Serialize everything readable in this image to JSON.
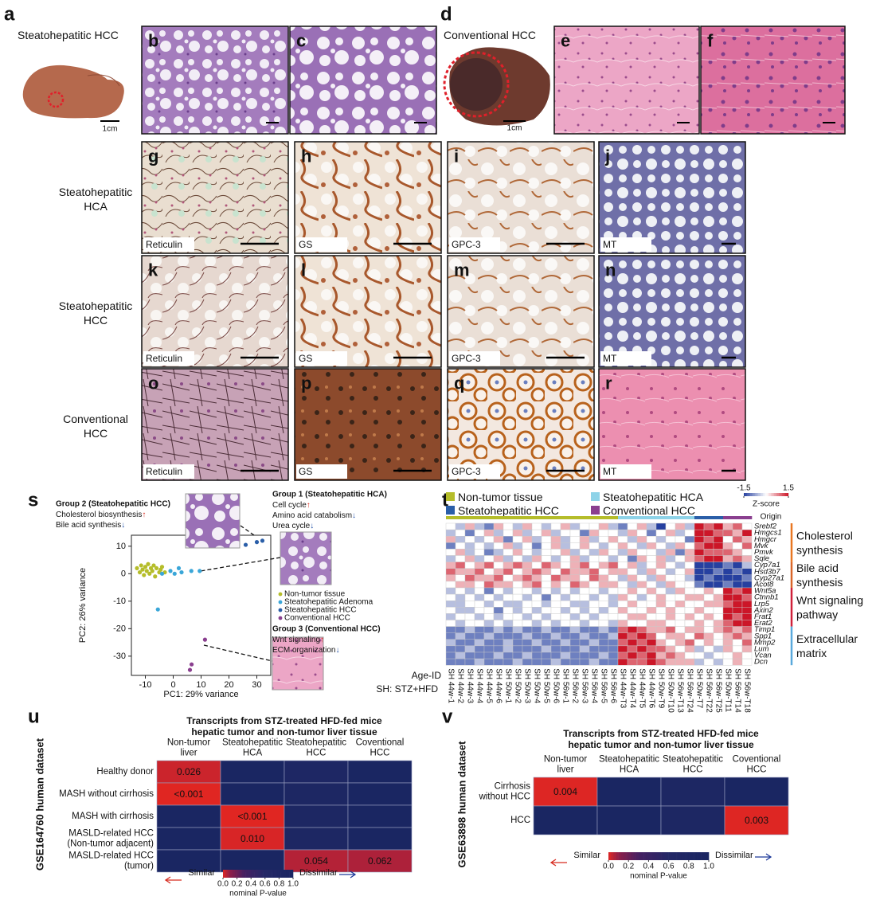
{
  "top": [
    {
      "letter": "a",
      "title": "Steatohepatitic HCC",
      "scale_bar": "1cm"
    },
    {
      "letter": "b"
    },
    {
      "letter": "c"
    },
    {
      "letter": "d",
      "title": "Conventional HCC",
      "scale_bar": "1cm"
    },
    {
      "letter": "e"
    },
    {
      "letter": "f"
    }
  ],
  "grid": [
    {
      "label": [
        "Steatohepatitic",
        "HCA"
      ],
      "panels": [
        {
          "letter": "g",
          "stain": "Reticulin"
        },
        {
          "letter": "h",
          "stain": "GS"
        },
        {
          "letter": "i",
          "stain": "GPC-3"
        },
        {
          "letter": "j",
          "stain": "MT"
        }
      ]
    },
    {
      "label": [
        "Steatohepatitic",
        "HCC"
      ],
      "panels": [
        {
          "letter": "k",
          "stain": "Reticulin"
        },
        {
          "letter": "l",
          "stain": "GS"
        },
        {
          "letter": "m",
          "stain": "GPC-3"
        },
        {
          "letter": "n",
          "stain": "MT"
        }
      ]
    },
    {
      "label": [
        "Conventional",
        "HCC"
      ],
      "panels": [
        {
          "letter": "o",
          "stain": "Reticulin"
        },
        {
          "letter": "p",
          "stain": "GS"
        },
        {
          "letter": "q",
          "stain": "GPC-3"
        },
        {
          "letter": "r",
          "stain": "MT"
        }
      ]
    }
  ],
  "s": {
    "letter": "s",
    "type": "scatter",
    "x_label": "PC1: 29% variance",
    "y_label": "PC2: 26% variance",
    "xlim": [
      -15,
      35
    ],
    "ylim": [
      -37,
      14
    ],
    "xticks": [
      -10,
      0,
      10,
      20,
      30
    ],
    "yticks": [
      10,
      0,
      -10,
      -20,
      -30
    ],
    "series": [
      {
        "name": "Non-tumor tissue",
        "color": "#b5bd2a",
        "x": [
          -13,
          -12,
          -11.5,
          -11,
          -10.5,
          -10,
          -9.5,
          -9,
          -8.5,
          -8,
          -7.5,
          -7,
          -6.5,
          -6,
          -5,
          -4.5,
          -4,
          -3
        ],
        "y": [
          2,
          0.5,
          3,
          1.5,
          -0.5,
          2.5,
          1,
          3.5,
          0,
          2,
          1,
          3,
          -1,
          2,
          0.5,
          1.5,
          2.5,
          0.5
        ]
      },
      {
        "name": "Steatohepatitic Adenoma",
        "color": "#3aa6d8",
        "x": [
          -4,
          -1,
          0.5,
          2,
          3,
          6.5,
          9.5,
          -5.5
        ],
        "y": [
          0,
          1,
          0,
          2,
          0.5,
          1,
          1,
          -13
        ]
      },
      {
        "name": "Steatohepatitic HCC",
        "color": "#2a5ea8",
        "x": [
          26,
          30,
          32
        ],
        "y": [
          10.5,
          11.5,
          12
        ]
      },
      {
        "name": "Conventional HCC",
        "color": "#8a3f8f",
        "x": [
          6.6,
          6,
          11.4
        ],
        "y": [
          -33,
          -35,
          -24
        ]
      }
    ],
    "groups": [
      {
        "title": "Group 2 (Steatohepatitic HCC)",
        "items": [
          {
            "text": "Cholesterol biosynthesis",
            "arrow": "↑",
            "arrow_color": "#d62a1e"
          },
          {
            "text": "Bile acid synthesis",
            "arrow": "↓",
            "arrow_color": "#1f4fa8"
          }
        ]
      },
      {
        "title": "Group 1 (Steatohepatitic HCA)",
        "items": [
          {
            "text": "Cell cycle",
            "arrow": "↑",
            "arrow_color": "#d62a1e"
          },
          {
            "text": "Amino acid catabolism",
            "arrow": "↓",
            "arrow_color": "#1f4fa8"
          },
          {
            "text": "Urea cycle",
            "arrow": "↓",
            "arrow_color": "#1f4fa8"
          }
        ]
      },
      {
        "title": "Group 3 (Conventional HCC)",
        "items": [
          {
            "text": "Wnt signaling",
            "arrow": "↑",
            "arrow_color": "#d62a1e"
          },
          {
            "text": "ECM organization",
            "arrow": "↓",
            "arrow_color": "#1f4fa8"
          }
        ]
      }
    ]
  },
  "t": {
    "letter": "t",
    "type": "heatmap",
    "groups": [
      {
        "name": "Non-tumor tissue",
        "color": "#b5bd2a"
      },
      {
        "name": "Steatohepatitic HCA",
        "color": "#8ed3e8"
      },
      {
        "name": "Steatohepatitic HCC",
        "color": "#2a5ea8"
      },
      {
        "name": "Conventional HCC",
        "color": "#8a3f8f"
      }
    ],
    "zlim": [
      -1.5,
      1.5
    ],
    "colorbar_ticks": [
      -1.5,
      1.5
    ],
    "colorbar_label": "Z-score",
    "origin_label": "Origin",
    "age_label": "Age-ID",
    "note": "SH: STZ+HFD",
    "origin": [
      0,
      0,
      0,
      0,
      0,
      0,
      0,
      0,
      0,
      0,
      0,
      0,
      0,
      0,
      0,
      0,
      0,
      0,
      1,
      1,
      1,
      1,
      1,
      1,
      1,
      1,
      2,
      2,
      2,
      3,
      3,
      3
    ],
    "samples": [
      "SH 44w-1",
      "SH 44w-2",
      "SH 44w-3",
      "SH 44w-4",
      "SH 44w-5",
      "SH 44w-6",
      "SH 50w-1",
      "SH 50w-2",
      "SH 50w-3",
      "SH 50w-4",
      "SH 50w-5",
      "SH 50w-6",
      "SH 56w-1",
      "SH 56w-2",
      "SH 56w-3",
      "SH 56w-4",
      "SH 56w-5",
      "SH 56w-6",
      "SH 44w-T3",
      "SH 44w-T4",
      "SH 44w-T5",
      "SH 44w-T6",
      "SH 50w-T9",
      "SH 50w-T10",
      "SH 56w-T13",
      "SH 56w-T24",
      "SH 50w-T7",
      "SH 56w-T22",
      "SH 56w-T25",
      "SH 50w-T11",
      "SH 56w-T14",
      "SH 56w-T18"
    ],
    "genes": [
      "Srebf2",
      "Hmgcs1",
      "Hmgcr",
      "Mvk",
      "Pmvk",
      "Sqle",
      "Cyp7a1",
      "Hsd3b7",
      "Cyp27a1",
      "Acot8",
      "Wnt5a",
      "Ctnnb1",
      "Lrp5",
      "Axin2",
      "Frat1",
      "Erat2",
      "Timp1",
      "Spp1",
      "Mmp2",
      "Lum",
      "Vcan",
      "Dcn"
    ],
    "pathways": [
      {
        "label": [
          "Cholesterol",
          "synthesis"
        ],
        "rows": [
          0,
          5
        ],
        "color": "#e87722"
      },
      {
        "label": [
          "Bile acid",
          "synthesis"
        ],
        "rows": [
          6,
          9
        ],
        "color": "#d9662a"
      },
      {
        "label": [
          "Wnt signaling",
          "pathway"
        ],
        "rows": [
          10,
          15
        ],
        "color": "#d0213a"
      },
      {
        "label": [
          "Extracellular",
          "matrix"
        ],
        "rows": [
          16,
          21
        ],
        "color": "#5aa9dc"
      }
    ],
    "values": [
      [
        0,
        -0.5,
        0.5,
        -0.5,
        -1,
        0.5,
        0,
        -0.5,
        0.5,
        0,
        -0.5,
        0,
        0.5,
        -0.5,
        0,
        0,
        0.5,
        -0.5,
        -1,
        0,
        0.5,
        -0.5,
        -1.5,
        0,
        0.5,
        -0.5,
        1.5,
        1,
        1.5,
        0.5,
        1,
        0
      ],
      [
        -0.5,
        0,
        -1,
        0,
        0.5,
        -0.5,
        0,
        0.5,
        -0.5,
        0,
        0.5,
        -0.5,
        0,
        0,
        -1,
        0.5,
        0,
        0,
        -0.5,
        0.5,
        0,
        -1,
        0,
        0.5,
        -0.5,
        0,
        1.5,
        1.5,
        1,
        1,
        0.5,
        1.5
      ],
      [
        0.5,
        -0.5,
        0,
        -0.5,
        0,
        0.5,
        -1,
        0,
        0.5,
        -0.5,
        0,
        0.5,
        -0.5,
        0,
        0.5,
        -0.5,
        0,
        0.5,
        0,
        -0.5,
        0.5,
        0,
        -0.5,
        0,
        0,
        -1,
        1.5,
        1,
        1.5,
        0,
        1,
        0.5
      ],
      [
        -1,
        0,
        -0.5,
        0,
        -0.5,
        0,
        0.5,
        -0.5,
        0,
        -1,
        0,
        0.5,
        -0.5,
        0,
        0.5,
        0,
        -0.5,
        0,
        0.5,
        0,
        -0.5,
        0.5,
        0,
        -0.5,
        0.5,
        0,
        1,
        1.5,
        1.5,
        0.5,
        0,
        1
      ],
      [
        0,
        0.5,
        -0.5,
        0,
        -1,
        -0.5,
        0,
        0.5,
        0,
        -0.5,
        0,
        0,
        0.5,
        -0.5,
        0,
        -0.5,
        0.5,
        0,
        -0.5,
        0.5,
        0,
        0,
        -0.5,
        0.5,
        -1,
        0.5,
        1.5,
        1,
        1,
        1,
        0.5,
        0
      ],
      [
        -0.5,
        0,
        0.5,
        -0.5,
        0,
        0.5,
        -0.5,
        0,
        -0.5,
        0.5,
        0,
        -0.5,
        0,
        0.5,
        -0.5,
        0,
        0,
        -0.5,
        0,
        -1,
        0.5,
        0,
        0.5,
        -0.5,
        0,
        0.5,
        1,
        1.5,
        1.5,
        0.5,
        1,
        0.5
      ],
      [
        0.5,
        1,
        0,
        0.5,
        1,
        0,
        0.5,
        1,
        0.5,
        0,
        1,
        0.5,
        0,
        0.5,
        1,
        0,
        0.5,
        1,
        0,
        0.5,
        -0.5,
        0,
        0.5,
        0,
        -0.5,
        0,
        -1.5,
        -1.5,
        -1.5,
        -1,
        -1.5,
        -0.5
      ],
      [
        1,
        0.5,
        0.5,
        1,
        0,
        0.5,
        1,
        0,
        0.5,
        1,
        0.5,
        0,
        1,
        0.5,
        0.5,
        1,
        0,
        0.5,
        0.5,
        0,
        -0.5,
        0.5,
        0,
        -0.5,
        0,
        0.5,
        -1.5,
        -1.5,
        -1,
        -1.5,
        -1,
        -1.5
      ],
      [
        0.5,
        0,
        1,
        0.5,
        0.5,
        1,
        0,
        0.5,
        1,
        0.5,
        0,
        1,
        0.5,
        0.5,
        0,
        1,
        0.5,
        0,
        -0.5,
        0.5,
        0,
        -0.5,
        0.5,
        0,
        0,
        -0.5,
        -1.5,
        -1,
        -1.5,
        -1.5,
        -1.5,
        -1
      ],
      [
        0,
        0.5,
        0.5,
        0,
        1,
        0.5,
        0.5,
        0,
        0.5,
        1,
        0,
        0.5,
        0,
        1,
        0.5,
        0,
        0.5,
        0.5,
        0,
        -0.5,
        0.5,
        0,
        -0.5,
        0.5,
        0,
        0,
        -1,
        -1.5,
        -1.5,
        -1,
        -1.5,
        -1.5
      ],
      [
        -0.5,
        0,
        -0.5,
        0,
        -1,
        0,
        -0.5,
        0,
        0,
        -0.5,
        0,
        -0.5,
        0,
        -0.5,
        0,
        0,
        -0.5,
        0,
        0,
        0.5,
        0,
        0.5,
        0,
        -0.5,
        0.5,
        0,
        0,
        0.5,
        0,
        1.5,
        1,
        1.5
      ],
      [
        0,
        -0.5,
        0,
        -0.5,
        0,
        -0.5,
        0,
        0,
        -0.5,
        0,
        -1,
        0,
        -0.5,
        0,
        0,
        -0.5,
        0,
        -0.5,
        0.5,
        0,
        -0.5,
        0,
        0.5,
        0,
        0,
        0.5,
        0.5,
        0,
        0.5,
        1.5,
        1.5,
        1
      ],
      [
        -0.5,
        -0.5,
        0,
        0,
        -0.5,
        0,
        -0.5,
        -0.5,
        0,
        0,
        -0.5,
        0,
        0,
        -0.5,
        -0.5,
        0,
        0,
        -0.5,
        0,
        0.5,
        0,
        0,
        0.5,
        0,
        0.5,
        0,
        0,
        0.5,
        0.5,
        1,
        1.5,
        1.5
      ],
      [
        0,
        -0.5,
        -0.5,
        0,
        0,
        -1,
        0,
        -0.5,
        0,
        -0.5,
        0,
        0,
        -0.5,
        0,
        -0.5,
        0,
        -0.5,
        0,
        0.5,
        0,
        0,
        0.5,
        0,
        0.5,
        0,
        0,
        0.5,
        0,
        0,
        1.5,
        1.5,
        1.5
      ],
      [
        -0.5,
        0,
        0,
        -0.5,
        0,
        -0.5,
        0,
        0,
        -0.5,
        0,
        -0.5,
        0,
        0,
        -0.5,
        0,
        -0.5,
        0,
        0,
        0,
        0.5,
        0.5,
        0,
        0,
        0.5,
        0,
        0.5,
        0,
        0.5,
        0,
        1.5,
        1,
        1.5
      ],
      [
        0,
        -0.5,
        0,
        0,
        -0.5,
        0,
        -0.5,
        0,
        0,
        -0.5,
        0,
        -0.5,
        0,
        0,
        -0.5,
        0,
        0,
        -0.5,
        0.5,
        0,
        0,
        0.5,
        0.5,
        0,
        0,
        0,
        0.5,
        0,
        0.5,
        1,
        1.5,
        1.5
      ],
      [
        -1,
        -1,
        -0.5,
        -1,
        -1,
        -0.5,
        -1,
        -0.5,
        -1,
        -1,
        -0.5,
        -1,
        -1,
        -0.5,
        -1,
        -1,
        -0.5,
        -1,
        1,
        1.5,
        1,
        0.5,
        0.5,
        1,
        0,
        0.5,
        0.5,
        0,
        0.5,
        1,
        0.5,
        1
      ],
      [
        -1,
        -0.5,
        -1,
        -1,
        -0.5,
        -1,
        -1,
        -1,
        -0.5,
        -1,
        -1,
        -0.5,
        -1,
        -1,
        -0.5,
        -1,
        -1,
        -0.5,
        1.5,
        1,
        1.5,
        1,
        0,
        0.5,
        0.5,
        0,
        1,
        0.5,
        0,
        0.5,
        1,
        0.5
      ],
      [
        -0.5,
        -1,
        -1,
        -0.5,
        -1,
        -1,
        -0.5,
        -1,
        -1,
        -0.5,
        -1,
        -1,
        -0.5,
        -1,
        -1,
        -0.5,
        -1,
        -1,
        1,
        1.5,
        1,
        1.5,
        0.5,
        0,
        0.5,
        1,
        0,
        0.5,
        0,
        0.5,
        0,
        1
      ],
      [
        -1,
        -1,
        -0.5,
        -1,
        -1,
        -1,
        -0.5,
        -1,
        -1,
        -1,
        -0.5,
        -1,
        -1,
        -1,
        -0.5,
        -1,
        -1,
        -1,
        1.5,
        1,
        1.5,
        1,
        1,
        0.5,
        0,
        0.5,
        -0.5,
        0,
        -0.5,
        0.5,
        0,
        0.5
      ],
      [
        -1,
        -0.5,
        -1,
        -1,
        -1,
        -0.5,
        -1,
        -1,
        -0.5,
        -1,
        -1,
        -1,
        -0.5,
        -1,
        -1,
        -1,
        -0.5,
        -1,
        1,
        1.5,
        1,
        1.5,
        0.5,
        1,
        0.5,
        0,
        0,
        -0.5,
        0,
        0,
        0.5,
        0
      ],
      [
        -1,
        -1,
        -1,
        -0.5,
        -1,
        -1,
        -1,
        -0.5,
        -1,
        -1,
        -1,
        -0.5,
        -1,
        -1,
        -1,
        -0.5,
        -1,
        -1,
        1.5,
        1,
        1,
        1.5,
        1,
        0.5,
        0.5,
        0.5,
        -0.5,
        0,
        -0.5,
        0,
        0.5,
        0
      ]
    ]
  },
  "u": {
    "letter": "u",
    "type": "heatmap",
    "dataset": "GSE164760 human dataset",
    "title": [
      "Transcripts from STZ-treated HFD-fed mice",
      "hepatic tumor and non-tumor liver tissue"
    ],
    "columns": [
      [
        "Non-tumor",
        "liver"
      ],
      [
        "Steatohepatitic",
        "HCA"
      ],
      [
        "Steatohepatitic",
        "HCC"
      ],
      [
        "Coventional",
        "HCC"
      ]
    ],
    "rows": [
      [
        "Healthy donor"
      ],
      [
        "MASH without cirrhosis"
      ],
      [
        "MASH with cirrhosis"
      ],
      [
        "MASLD-related HCC",
        "(Non-tumor adjacent)"
      ],
      [
        "MASLD-related HCC",
        "(tumor)"
      ]
    ],
    "values": [
      [
        0.026,
        1,
        0.85,
        1
      ],
      [
        0.0005,
        1,
        0.9,
        1
      ],
      [
        1,
        0.0005,
        0.9,
        1
      ],
      [
        1,
        0.01,
        0.9,
        1
      ],
      [
        1,
        1,
        0.054,
        0.062
      ]
    ],
    "value_labels": [
      [
        "0.026",
        null,
        null,
        null
      ],
      [
        "<0.001",
        null,
        null,
        null
      ],
      [
        null,
        "<0.001",
        null,
        null
      ],
      [
        null,
        "0.010",
        null,
        null
      ],
      [
        null,
        null,
        "0.054",
        "0.062"
      ]
    ],
    "zlim": [
      0,
      1
    ],
    "colorbar_ticks": [
      {
        "value": 0,
        "label": "0.0"
      },
      {
        "value": 0.2,
        "label": "0.2"
      },
      {
        "value": 0.4,
        "label": "0.4"
      },
      {
        "value": 0.6,
        "label": "0.6"
      },
      {
        "value": 0.8,
        "label": "0.8"
      },
      {
        "value": 1,
        "label": "1.0"
      }
    ],
    "colorbar_label": "nominal P-value",
    "similar": "Similar",
    "dissimilar": "Dissimilar"
  },
  "v": {
    "letter": "v",
    "type": "heatmap",
    "dataset": "GSE63898 human dataset",
    "title": [
      "Transcripts from STZ-treated HFD-fed mice",
      "hepatic tumor and non-tumor liver tissue"
    ],
    "columns": [
      [
        "Non-tumor",
        "liver"
      ],
      [
        "Steatohepatitic",
        "HCA"
      ],
      [
        "Steatohepatitic",
        "HCC"
      ],
      [
        "Coventional",
        "HCC"
      ]
    ],
    "rows": [
      [
        "Cirrhosis",
        "without HCC"
      ],
      [
        "HCC"
      ]
    ],
    "values": [
      [
        0.004,
        1,
        0.9,
        1
      ],
      [
        1,
        1,
        0.9,
        0.003
      ]
    ],
    "value_labels": [
      [
        "0.004",
        null,
        null,
        null
      ],
      [
        null,
        null,
        null,
        "0.003"
      ]
    ],
    "zlim": [
      0,
      1
    ],
    "colorbar_ticks": [
      {
        "value": 0,
        "label": "0.0"
      },
      {
        "value": 0.2,
        "label": "0.2"
      },
      {
        "value": 0.4,
        "label": "0.4"
      },
      {
        "value": 0.6,
        "label": "0.6"
      },
      {
        "value": 0.8,
        "label": "0.8"
      },
      {
        "value": 1,
        "label": "1.0"
      }
    ],
    "colorbar_label": "nominal P-value",
    "similar": "Similar",
    "dissimilar": "Dissimilar"
  }
}
